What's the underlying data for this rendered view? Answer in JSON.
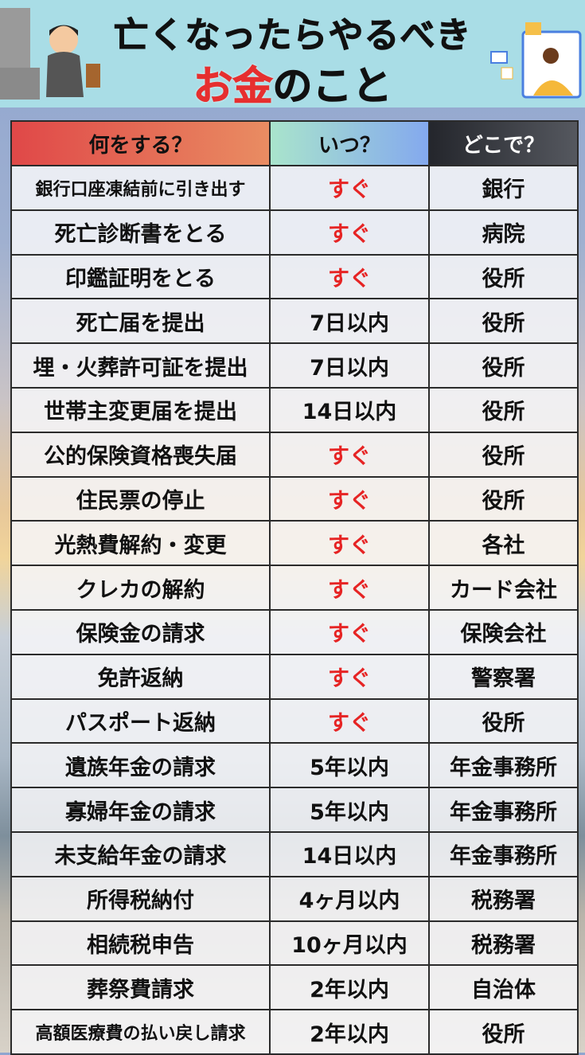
{
  "header": {
    "title_line1": "亡くなったらやるべき",
    "title_line2_red": "お金",
    "title_line2_rest": "のこと"
  },
  "colors": {
    "header_bg": "#a9dde6",
    "red": "#e62424",
    "col1_header": "#e04848",
    "col2_header": "#84a9ee",
    "col3_header": "#24262c"
  },
  "table": {
    "headers": [
      "何をする？",
      "いつ？",
      "どこで？"
    ],
    "rows": [
      {
        "what": "銀行口座凍結前に引き出す",
        "when": "すぐ",
        "where": "銀行",
        "urgent": true
      },
      {
        "what": "死亡診断書をとる",
        "when": "すぐ",
        "where": "病院",
        "urgent": true
      },
      {
        "what": "印鑑証明をとる",
        "when": "すぐ",
        "where": "役所",
        "urgent": true
      },
      {
        "what": "死亡届を提出",
        "when": "7日以内",
        "where": "役所",
        "urgent": false
      },
      {
        "what": "埋・火葬許可証を提出",
        "when": "7日以内",
        "where": "役所",
        "urgent": false
      },
      {
        "what": "世帯主変更届を提出",
        "when": "14日以内",
        "where": "役所",
        "urgent": false
      },
      {
        "what": "公的保険資格喪失届",
        "when": "すぐ",
        "where": "役所",
        "urgent": true
      },
      {
        "what": "住民票の停止",
        "when": "すぐ",
        "where": "役所",
        "urgent": true
      },
      {
        "what": "光熱費解約・変更",
        "when": "すぐ",
        "where": "各社",
        "urgent": true
      },
      {
        "what": "クレカの解約",
        "when": "すぐ",
        "where": "カード会社",
        "urgent": true
      },
      {
        "what": "保険金の請求",
        "when": "すぐ",
        "where": "保険会社",
        "urgent": true
      },
      {
        "what": "免許返納",
        "when": "すぐ",
        "where": "警察署",
        "urgent": true
      },
      {
        "what": "パスポート返納",
        "when": "すぐ",
        "where": "役所",
        "urgent": true
      },
      {
        "what": "遺族年金の請求",
        "when": "5年以内",
        "where": "年金事務所",
        "urgent": false
      },
      {
        "what": "寡婦年金の請求",
        "when": "5年以内",
        "where": "年金事務所",
        "urgent": false
      },
      {
        "what": "未支給年金の請求",
        "when": "14日以内",
        "where": "年金事務所",
        "urgent": false
      },
      {
        "what": "所得税納付",
        "when": "4ヶ月以内",
        "where": "税務署",
        "urgent": false
      },
      {
        "what": "相続税申告",
        "when": "10ヶ月以内",
        "where": "税務署",
        "urgent": false
      },
      {
        "what": "葬祭費請求",
        "when": "2年以内",
        "where": "自治体",
        "urgent": false
      },
      {
        "what": "高額医療費の払い戻し請求",
        "when": "2年以内",
        "where": "役所",
        "urgent": false
      }
    ]
  }
}
